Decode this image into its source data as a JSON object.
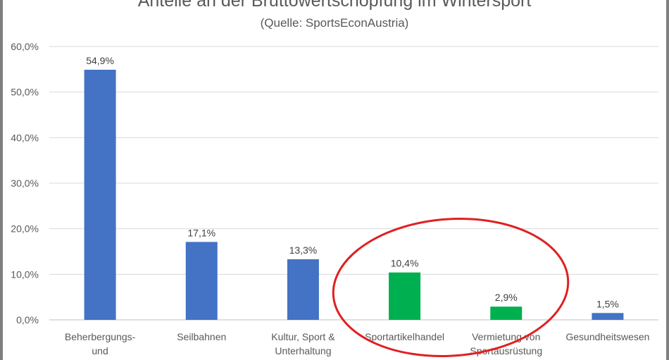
{
  "chart_data": {
    "type": "bar",
    "title": "Anteile an der Bruttowertschöpfung im Wintersport",
    "subtitle": "(Quelle: SportsEconAustria)",
    "categories": [
      [
        "Beherbergungs-",
        "und"
      ],
      [
        "Seilbahnen"
      ],
      [
        "Kultur, Sport &",
        "Unterhaltung"
      ],
      [
        "Sportartikelhandel"
      ],
      [
        "Vermietung von",
        "Sportausrüstung"
      ],
      [
        "Gesundheitswesen"
      ]
    ],
    "values": [
      54.9,
      17.1,
      13.3,
      10.4,
      2.9,
      1.5
    ],
    "data_labels": [
      "54,9%",
      "17,1%",
      "13,3%",
      "10,4%",
      "2,9%",
      "1,5%"
    ],
    "bar_colors": [
      "#4472c4",
      "#4472c4",
      "#4472c4",
      "#00b050",
      "#00b050",
      "#4472c4"
    ],
    "ylim": [
      0,
      60
    ],
    "yticks": [
      0,
      10,
      20,
      30,
      40,
      50,
      60
    ],
    "ytick_labels": [
      "0,0%",
      "10,0%",
      "20,0%",
      "30,0%",
      "40,0%",
      "50,0%",
      "60,0%"
    ],
    "grid": true,
    "xlabel": "",
    "ylabel": "",
    "annotation": {
      "shape": "ellipse",
      "color": "#e02020",
      "encloses": [
        "Sportartikelhandel",
        "Vermietung von Sportausrüstung"
      ]
    }
  }
}
